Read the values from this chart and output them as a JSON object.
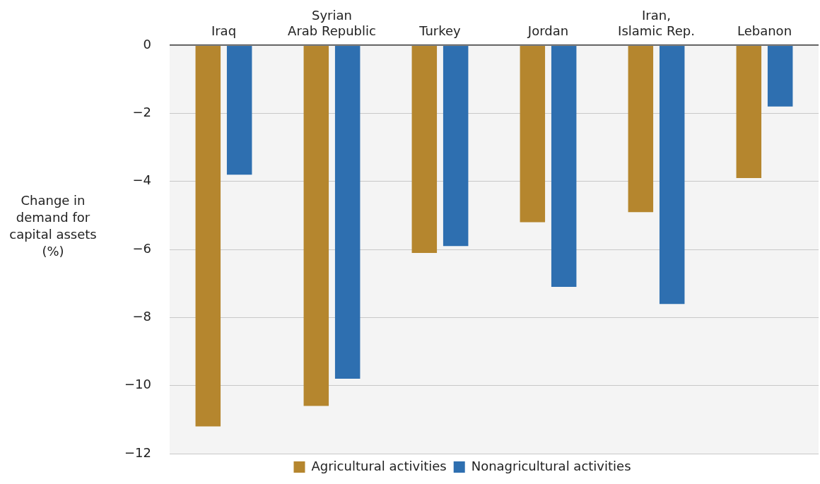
{
  "chart_data": {
    "type": "bar",
    "ylabel": "Change in demand for capital assets (%)",
    "categories": [
      "Iraq",
      "Syrian\nArab Republic",
      "Turkey",
      "Jordan",
      "Iran,\nIslamic Rep.",
      "Lebanon"
    ],
    "series": [
      {
        "name": "Agricultural activities",
        "color": "#b5862e",
        "values": [
          -11.2,
          -10.6,
          -6.1,
          -5.2,
          -4.9,
          -3.9
        ]
      },
      {
        "name": "Nonagricultural activities",
        "color": "#2e6fb0",
        "values": [
          -3.8,
          -9.8,
          -5.9,
          -7.1,
          -7.6,
          -1.8
        ]
      }
    ],
    "ylim": [
      -12,
      0
    ],
    "yticks": [
      0,
      -2,
      -4,
      -6,
      -8,
      -10,
      -12
    ],
    "grid": "y",
    "legend": "bottom"
  }
}
